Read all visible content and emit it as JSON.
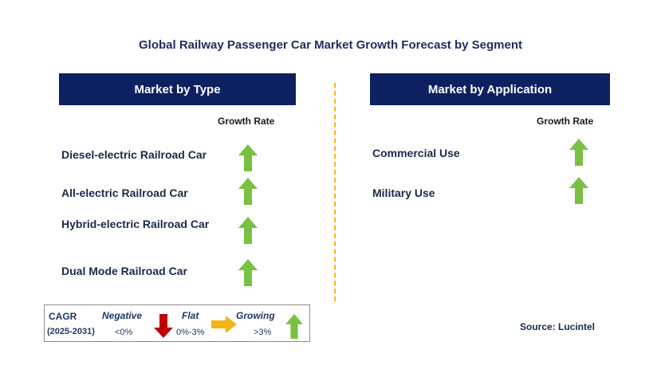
{
  "title": "Global Railway Passenger Car Market Growth Forecast by Segment",
  "left_panel": {
    "header": "Market by Type",
    "growth_label": "Growth Rate",
    "items": [
      {
        "label": "Diesel-electric Railroad Car",
        "trend": "growing"
      },
      {
        "label": "All-electric Railroad Car",
        "trend": "growing"
      },
      {
        "label": "Hybrid-electric Railroad Car",
        "trend": "growing"
      },
      {
        "label": "Dual Mode Railroad Car",
        "trend": "growing"
      }
    ]
  },
  "right_panel": {
    "header": "Market by Application",
    "growth_label": "Growth Rate",
    "items": [
      {
        "label": "Commercial Use",
        "trend": "growing"
      },
      {
        "label": "Military Use",
        "trend": "growing"
      }
    ]
  },
  "legend": {
    "cagr": "CAGR",
    "period": "(2025-2031)",
    "negative_label": "Negative",
    "negative_value": "<0%",
    "flat_label": "Flat",
    "flat_value": "0%-3%",
    "growing_label": "Growing",
    "growing_value": ">3%"
  },
  "source": "Source: Lucintel",
  "colors": {
    "header_bg": "#0d2160",
    "growing": "#7ac143",
    "negative": "#c00000",
    "flat": "#f2b418",
    "divider": "#f2b418"
  }
}
